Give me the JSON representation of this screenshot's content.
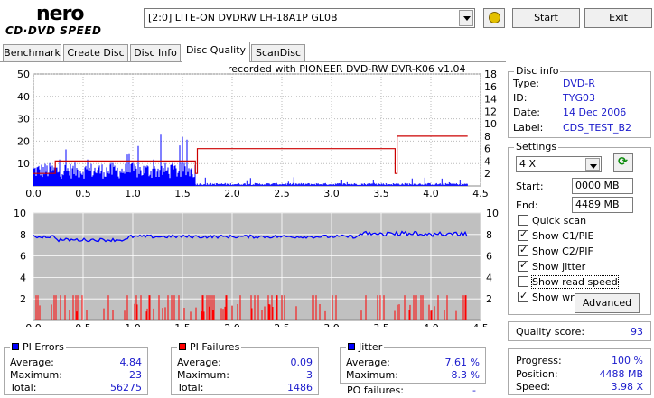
{
  "app": {
    "logo_top": "nero",
    "logo_bottom": "CD·DVD SPEED"
  },
  "drive": {
    "selected": "[2:0]  LITE-ON DVDRW LH-18A1P GL0B"
  },
  "buttons": {
    "start": "Start",
    "exit": "Exit",
    "advanced": "Advanced"
  },
  "tabs": [
    {
      "label": "Benchmark"
    },
    {
      "label": "Create Disc"
    },
    {
      "label": "Disc Info"
    },
    {
      "label": "Disc Quality"
    },
    {
      "label": "ScanDisc"
    }
  ],
  "recorded_with": "recorded with PIONEER DVD-RW  DVR-K06  v1.04",
  "disc_info": {
    "title": "Disc info",
    "type_label": "Type:",
    "type": "DVD-R",
    "id_label": "ID:",
    "id": "TYG03",
    "date_label": "Date:",
    "date": "14 Dec 2006",
    "label_label": "Label:",
    "label": "CDS_TEST_B2"
  },
  "settings": {
    "title": "Settings",
    "speed": "4 X",
    "start_label": "Start:",
    "start": "0000 MB",
    "end_label": "End:",
    "end": "4489 MB",
    "checks": [
      {
        "label": "Quick scan",
        "checked": false
      },
      {
        "label": "Show C1/PIE",
        "checked": true
      },
      {
        "label": "Show C2/PIF",
        "checked": true
      },
      {
        "label": "Show jitter",
        "checked": true
      },
      {
        "label": "Show read speed",
        "checked": false
      },
      {
        "label": "Show write speed",
        "checked": true
      }
    ]
  },
  "quality": {
    "label": "Quality score:",
    "value": "93"
  },
  "progress": {
    "progress_label": "Progress:",
    "progress": "100 %",
    "position_label": "Position:",
    "position": "4488 MB",
    "speed_label": "Speed:",
    "speed": "3.98 X"
  },
  "pi_errors": {
    "title": "PI Errors",
    "color": "#0000ff",
    "avg_label": "Average:",
    "avg": "4.84",
    "max_label": "Maximum:",
    "max": "23",
    "total_label": "Total:",
    "total": "56275"
  },
  "pi_failures": {
    "title": "PI Failures",
    "color": "#ff0000",
    "avg_label": "Average:",
    "avg": "0.09",
    "max_label": "Maximum:",
    "max": "3",
    "total_label": "Total:",
    "total": "1486"
  },
  "jitter": {
    "title": "Jitter",
    "color": "#0000ff",
    "avg_label": "Average:",
    "avg": "7.61 %",
    "max_label": "Maximum:",
    "max": "8.3 %",
    "po_label": "PO failures:",
    "po": "-"
  },
  "chart_data": [
    {
      "type": "bar",
      "name": "PI Errors / Read speed",
      "x_ticks": [
        "0.0",
        "0.5",
        "1.0",
        "1.5",
        "2.0",
        "2.5",
        "3.0",
        "3.5",
        "4.0",
        "4.5"
      ],
      "xlim": [
        0,
        4.5
      ],
      "ylim_left": [
        0,
        50
      ],
      "y_ticks_left": [
        "10",
        "20",
        "30",
        "40",
        "50"
      ],
      "ylim_right": [
        0,
        18
      ],
      "y_ticks_right": [
        "2",
        "4",
        "6",
        "8",
        "10",
        "12",
        "14",
        "16",
        "18"
      ],
      "series": [
        {
          "name": "PI Errors",
          "color": "#0000ff",
          "segments": [
            {
              "x0": 0.0,
              "x1": 1.63,
              "base": 8,
              "peak": 23
            },
            {
              "x0": 1.63,
              "x1": 4.37,
              "base": 1,
              "peak": 4
            }
          ]
        },
        {
          "name": "Write speed",
          "color": "#cc0000",
          "points": [
            [
              0.0,
              2
            ],
            [
              0.22,
              2
            ],
            [
              0.22,
              4
            ],
            [
              1.63,
              4
            ],
            [
              1.63,
              2
            ],
            [
              1.65,
              2
            ],
            [
              1.65,
              6
            ],
            [
              3.64,
              6
            ],
            [
              3.64,
              2
            ],
            [
              3.66,
              2
            ],
            [
              3.66,
              8
            ],
            [
              4.37,
              8
            ]
          ]
        }
      ]
    },
    {
      "type": "bar",
      "name": "PI Failures / Jitter",
      "x_ticks": [
        "0.0",
        "0.5",
        "1.0",
        "1.5",
        "2.0",
        "2.5",
        "3.0",
        "3.5",
        "4.0",
        "4.5"
      ],
      "xlim": [
        0,
        4.5
      ],
      "ylim_left": [
        0,
        10
      ],
      "y_ticks_left": [
        "2",
        "4",
        "6",
        "8",
        "10"
      ],
      "y_ticks_right": [
        "2",
        "4",
        "6",
        "8",
        "10"
      ],
      "series": [
        {
          "name": "PI Failures",
          "color": "#ff0000",
          "max": 3
        },
        {
          "name": "Jitter",
          "color": "#0000ff",
          "range": [
            7.3,
            8.3
          ]
        }
      ]
    }
  ]
}
